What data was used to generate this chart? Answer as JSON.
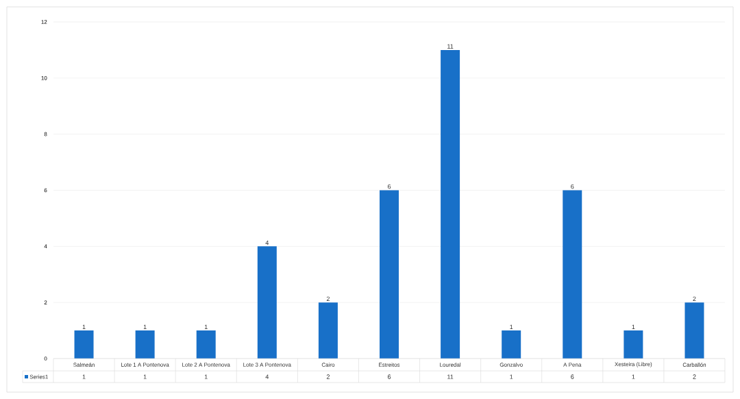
{
  "chart_data": {
    "type": "bar",
    "categories": [
      "Salmeán",
      "Lote 1 A Pontenova",
      "Lote 2 A Pontenova",
      "Lote 3 A Pontenova",
      "Cairo",
      "Estreitos",
      "Louredal",
      "Gonzalvo",
      "A Pena",
      "Xesteira (Libre)",
      "Carballón"
    ],
    "series": [
      {
        "name": "Series1",
        "color": "#1870c8",
        "values": [
          1,
          1,
          1,
          4,
          2,
          6,
          11,
          1,
          6,
          1,
          2
        ],
        "value_labels": [
          "1",
          "1",
          "1",
          "4",
          "2",
          "6",
          "11",
          "1",
          "6",
          "1",
          "2"
        ]
      }
    ],
    "ylim": [
      0,
      12
    ],
    "yticks": [
      0,
      2,
      4,
      6,
      8,
      10,
      12
    ],
    "grid": "y",
    "legend": "bottom"
  }
}
